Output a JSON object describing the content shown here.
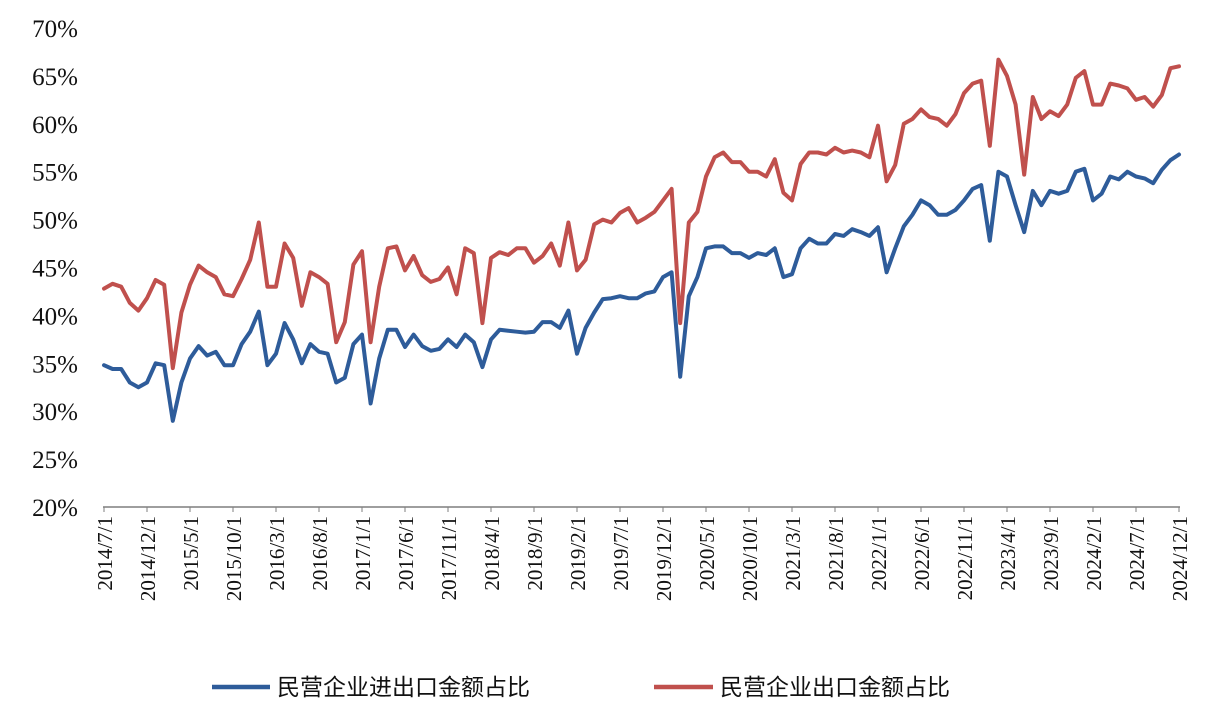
{
  "chart_data": {
    "type": "line",
    "title": "",
    "xlabel": "",
    "ylabel": "",
    "ylim": [
      0.2,
      0.7
    ],
    "yticks": [
      "20%",
      "25%",
      "30%",
      "35%",
      "40%",
      "45%",
      "50%",
      "55%",
      "60%",
      "65%",
      "70%"
    ],
    "x_tick_labels": [
      "2014/7/1",
      "2014/12/1",
      "2015/5/1",
      "2015/10/1",
      "2016/3/1",
      "2016/8/1",
      "2017/1/1",
      "2017/6/1",
      "2017/11/1",
      "2018/4/1",
      "2018/9/1",
      "2019/2/1",
      "2019/7/1",
      "2019/12/1",
      "2020/5/1",
      "2020/10/1",
      "2021/3/1",
      "2021/8/1",
      "2022/1/1",
      "2022/6/1",
      "2022/11/1",
      "2023/4/1",
      "2023/9/1",
      "2024/2/1",
      "2024/7/1",
      "2024/12/1"
    ],
    "grid": false,
    "legend_position": "bottom",
    "x_start": "2014/7/1",
    "x_end": "2024/12/1",
    "series": [
      {
        "name": "民营企业进出口金额占比",
        "color": "#2E5C9A",
        "values": [
          0.348,
          0.344,
          0.344,
          0.33,
          0.325,
          0.33,
          0.35,
          0.348,
          0.29,
          0.33,
          0.355,
          0.368,
          0.358,
          0.362,
          0.348,
          0.348,
          0.37,
          0.383,
          0.404,
          0.348,
          0.36,
          0.392,
          0.375,
          0.35,
          0.37,
          0.362,
          0.36,
          0.33,
          0.335,
          0.37,
          0.38,
          0.308,
          0.355,
          0.385,
          0.385,
          0.367,
          0.38,
          0.368,
          0.363,
          0.365,
          0.375,
          0.367,
          0.38,
          0.372,
          0.346,
          0.375,
          0.385,
          0.384,
          0.383,
          0.382,
          0.383,
          0.393,
          0.393,
          0.387,
          0.405,
          0.36,
          0.387,
          0.403,
          0.417,
          0.418,
          0.42,
          0.418,
          0.418,
          0.423,
          0.425,
          0.44,
          0.445,
          0.336,
          0.42,
          0.44,
          0.47,
          0.472,
          0.472,
          0.465,
          0.465,
          0.46,
          0.465,
          0.463,
          0.47,
          0.44,
          0.443,
          0.47,
          0.48,
          0.475,
          0.475,
          0.485,
          0.483,
          0.49,
          0.487,
          0.483,
          0.492,
          0.445,
          0.47,
          0.493,
          0.505,
          0.52,
          0.515,
          0.505,
          0.505,
          0.51,
          0.52,
          0.532,
          0.536,
          0.478,
          0.55,
          0.545,
          0.515,
          0.487,
          0.53,
          0.515,
          0.53,
          0.527,
          0.53,
          0.55,
          0.553,
          0.52,
          0.527,
          0.545,
          0.542,
          0.55,
          0.545,
          0.543,
          0.538,
          0.552,
          0.562,
          0.568
        ]
      },
      {
        "name": "民营企业出口金额占比",
        "color": "#C0504D",
        "values": [
          0.428,
          0.433,
          0.43,
          0.413,
          0.405,
          0.418,
          0.437,
          0.432,
          0.345,
          0.403,
          0.432,
          0.452,
          0.445,
          0.44,
          0.422,
          0.42,
          0.438,
          0.458,
          0.497,
          0.43,
          0.43,
          0.475,
          0.46,
          0.41,
          0.445,
          0.44,
          0.433,
          0.372,
          0.393,
          0.453,
          0.467,
          0.372,
          0.43,
          0.47,
          0.472,
          0.447,
          0.462,
          0.442,
          0.435,
          0.438,
          0.45,
          0.422,
          0.47,
          0.465,
          0.392,
          0.46,
          0.466,
          0.463,
          0.47,
          0.47,
          0.455,
          0.462,
          0.475,
          0.452,
          0.497,
          0.447,
          0.458,
          0.495,
          0.5,
          0.497,
          0.507,
          0.512,
          0.497,
          0.502,
          0.508,
          0.52,
          0.532,
          0.392,
          0.497,
          0.508,
          0.545,
          0.565,
          0.57,
          0.56,
          0.56,
          0.55,
          0.55,
          0.545,
          0.563,
          0.528,
          0.52,
          0.558,
          0.57,
          0.57,
          0.568,
          0.575,
          0.57,
          0.572,
          0.57,
          0.565,
          0.598,
          0.54,
          0.557,
          0.6,
          0.605,
          0.615,
          0.607,
          0.605,
          0.598,
          0.61,
          0.632,
          0.642,
          0.645,
          0.577,
          0.667,
          0.65,
          0.62,
          0.547,
          0.628,
          0.605,
          0.613,
          0.608,
          0.62,
          0.648,
          0.655,
          0.62,
          0.62,
          0.642,
          0.64,
          0.637,
          0.625,
          0.628,
          0.618,
          0.63,
          0.658,
          0.66
        ]
      }
    ]
  }
}
